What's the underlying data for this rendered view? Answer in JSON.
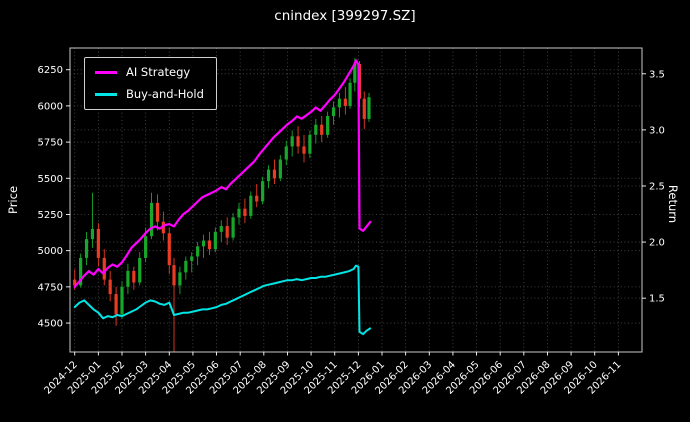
{
  "chart_data": {
    "type": "line",
    "title": "cnindex [399297.SZ]",
    "background": "#000000",
    "grid": {
      "show": true,
      "style": "dotted",
      "color": "#4f4f4f"
    },
    "x_axis": {
      "domain_months": [
        -0.2,
        24.0
      ],
      "tick_rotation": 45,
      "tick_labels": [
        "2024-12",
        "2025-01",
        "2025-02",
        "2025-03",
        "2025-04",
        "2025-05",
        "2025-06",
        "2025-07",
        "2025-08",
        "2025-09",
        "2025-10",
        "2025-11",
        "2025-12",
        "2026-01",
        "2026-02",
        "2026-03",
        "2026-04",
        "2026-05",
        "2026-06",
        "2026-07",
        "2026-08",
        "2026-09",
        "2026-10",
        "2026-11"
      ]
    },
    "left_axis": {
      "label": "Price",
      "ticks": [
        4500,
        4750,
        5000,
        5250,
        5500,
        5750,
        6000,
        6250
      ],
      "range": [
        4300,
        6400
      ]
    },
    "right_axis": {
      "label": "Return",
      "ticks": [
        "1.5",
        "2.0",
        "2.5",
        "3.0",
        "3.5"
      ],
      "range": [
        1.02,
        3.73
      ]
    },
    "legend": {
      "position": "upper-left",
      "entries": [
        {
          "label": "AI Strategy",
          "color": "#ff00ff"
        },
        {
          "label": "Buy-and-Hold",
          "color": "#00e5e5"
        }
      ]
    },
    "series": [
      {
        "name": "AI Strategy",
        "axis": "right",
        "color": "#ff00ff",
        "width": 2.2,
        "points": [
          [
            0.0,
            1.6
          ],
          [
            0.2,
            1.65
          ],
          [
            0.4,
            1.7
          ],
          [
            0.6,
            1.74
          ],
          [
            0.8,
            1.71
          ],
          [
            1.0,
            1.76
          ],
          [
            1.2,
            1.72
          ],
          [
            1.4,
            1.77
          ],
          [
            1.6,
            1.8
          ],
          [
            1.8,
            1.78
          ],
          [
            2.0,
            1.82
          ],
          [
            2.2,
            1.88
          ],
          [
            2.4,
            1.95
          ],
          [
            2.6,
            1.99
          ],
          [
            2.8,
            2.03
          ],
          [
            3.0,
            2.08
          ],
          [
            3.2,
            2.12
          ],
          [
            3.4,
            2.14
          ],
          [
            3.6,
            2.12
          ],
          [
            3.8,
            2.15
          ],
          [
            4.0,
            2.16
          ],
          [
            4.2,
            2.14
          ],
          [
            4.4,
            2.2
          ],
          [
            4.6,
            2.25
          ],
          [
            4.8,
            2.28
          ],
          [
            5.0,
            2.32
          ],
          [
            5.2,
            2.36
          ],
          [
            5.4,
            2.4
          ],
          [
            5.6,
            2.42
          ],
          [
            5.8,
            2.44
          ],
          [
            6.0,
            2.46
          ],
          [
            6.2,
            2.49
          ],
          [
            6.4,
            2.47
          ],
          [
            6.6,
            2.52
          ],
          [
            6.8,
            2.56
          ],
          [
            7.0,
            2.6
          ],
          [
            7.2,
            2.64
          ],
          [
            7.4,
            2.68
          ],
          [
            7.6,
            2.72
          ],
          [
            7.8,
            2.78
          ],
          [
            8.0,
            2.83
          ],
          [
            8.2,
            2.88
          ],
          [
            8.4,
            2.93
          ],
          [
            8.6,
            2.97
          ],
          [
            8.8,
            3.01
          ],
          [
            9.0,
            3.05
          ],
          [
            9.2,
            3.08
          ],
          [
            9.4,
            3.12
          ],
          [
            9.6,
            3.1
          ],
          [
            9.8,
            3.13
          ],
          [
            10.0,
            3.16
          ],
          [
            10.2,
            3.2
          ],
          [
            10.4,
            3.17
          ],
          [
            10.6,
            3.22
          ],
          [
            10.8,
            3.27
          ],
          [
            11.0,
            3.31
          ],
          [
            11.2,
            3.37
          ],
          [
            11.4,
            3.43
          ],
          [
            11.6,
            3.5
          ],
          [
            11.8,
            3.57
          ],
          [
            11.9,
            3.62
          ],
          [
            12.0,
            3.58
          ],
          [
            12.05,
            2.12
          ],
          [
            12.2,
            2.1
          ],
          [
            12.35,
            2.14
          ],
          [
            12.5,
            2.18
          ]
        ]
      },
      {
        "name": "Buy-and-Hold",
        "axis": "right",
        "color": "#00e5e5",
        "width": 2.0,
        "points": [
          [
            0.0,
            1.42
          ],
          [
            0.2,
            1.46
          ],
          [
            0.4,
            1.48
          ],
          [
            0.6,
            1.44
          ],
          [
            0.8,
            1.4
          ],
          [
            1.0,
            1.37
          ],
          [
            1.2,
            1.32
          ],
          [
            1.4,
            1.34
          ],
          [
            1.6,
            1.33
          ],
          [
            1.8,
            1.35
          ],
          [
            2.0,
            1.34
          ],
          [
            2.2,
            1.36
          ],
          [
            2.4,
            1.38
          ],
          [
            2.6,
            1.4
          ],
          [
            2.8,
            1.43
          ],
          [
            3.0,
            1.46
          ],
          [
            3.2,
            1.48
          ],
          [
            3.4,
            1.47
          ],
          [
            3.6,
            1.45
          ],
          [
            3.8,
            1.44
          ],
          [
            4.0,
            1.46
          ],
          [
            4.2,
            1.35
          ],
          [
            4.4,
            1.36
          ],
          [
            4.6,
            1.37
          ],
          [
            4.8,
            1.37
          ],
          [
            5.0,
            1.38
          ],
          [
            5.2,
            1.39
          ],
          [
            5.4,
            1.4
          ],
          [
            5.6,
            1.4
          ],
          [
            5.8,
            1.41
          ],
          [
            6.0,
            1.42
          ],
          [
            6.2,
            1.44
          ],
          [
            6.4,
            1.45
          ],
          [
            6.6,
            1.47
          ],
          [
            6.8,
            1.49
          ],
          [
            7.0,
            1.51
          ],
          [
            7.2,
            1.53
          ],
          [
            7.4,
            1.55
          ],
          [
            7.6,
            1.57
          ],
          [
            7.8,
            1.59
          ],
          [
            8.0,
            1.61
          ],
          [
            8.2,
            1.62
          ],
          [
            8.4,
            1.63
          ],
          [
            8.6,
            1.64
          ],
          [
            8.8,
            1.65
          ],
          [
            9.0,
            1.66
          ],
          [
            9.2,
            1.66
          ],
          [
            9.4,
            1.67
          ],
          [
            9.6,
            1.66
          ],
          [
            9.8,
            1.67
          ],
          [
            10.0,
            1.68
          ],
          [
            10.2,
            1.68
          ],
          [
            10.4,
            1.69
          ],
          [
            10.6,
            1.69
          ],
          [
            10.8,
            1.7
          ],
          [
            11.0,
            1.71
          ],
          [
            11.2,
            1.72
          ],
          [
            11.4,
            1.73
          ],
          [
            11.6,
            1.74
          ],
          [
            11.8,
            1.76
          ],
          [
            11.9,
            1.79
          ],
          [
            12.0,
            1.78
          ],
          [
            12.05,
            1.2
          ],
          [
            12.2,
            1.18
          ],
          [
            12.35,
            1.21
          ],
          [
            12.5,
            1.23
          ]
        ]
      }
    ],
    "candlestick": {
      "name": "cnindex price OHLC",
      "axis": "left",
      "up_color": "#17a82b",
      "down_color": "#ea3b23",
      "columns": [
        "month",
        "open",
        "high",
        "low",
        "close"
      ],
      "data": [
        [
          0.0,
          4800,
          4870,
          4730,
          4760
        ],
        [
          0.25,
          4760,
          4980,
          4745,
          4950
        ],
        [
          0.5,
          4950,
          5130,
          4900,
          5080
        ],
        [
          0.75,
          5080,
          5400,
          5020,
          5150
        ],
        [
          1.0,
          5150,
          5190,
          4890,
          4950
        ],
        [
          1.25,
          4950,
          5010,
          4760,
          4800
        ],
        [
          1.5,
          4800,
          4860,
          4650,
          4700
        ],
        [
          1.75,
          4700,
          4750,
          4480,
          4560
        ],
        [
          2.0,
          4560,
          4790,
          4530,
          4750
        ],
        [
          2.25,
          4750,
          4910,
          4700,
          4860
        ],
        [
          2.5,
          4860,
          4890,
          4730,
          4780
        ],
        [
          2.75,
          4780,
          4990,
          4760,
          4950
        ],
        [
          3.0,
          4950,
          5160,
          4920,
          5100
        ],
        [
          3.25,
          5100,
          5400,
          5080,
          5330
        ],
        [
          3.5,
          5330,
          5390,
          5140,
          5200
        ],
        [
          3.75,
          5200,
          5270,
          5070,
          5120
        ],
        [
          4.0,
          5120,
          5160,
          4840,
          4900
        ],
        [
          4.2,
          4900,
          4950,
          4300,
          4760
        ],
        [
          4.45,
          4760,
          4890,
          4700,
          4850
        ],
        [
          4.7,
          4850,
          4960,
          4800,
          4930
        ],
        [
          4.95,
          4930,
          4990,
          4850,
          4960
        ],
        [
          5.2,
          4960,
          5060,
          4900,
          5030
        ],
        [
          5.45,
          5030,
          5110,
          4950,
          5070
        ],
        [
          5.7,
          5070,
          5130,
          4970,
          5010
        ],
        [
          5.95,
          5010,
          5160,
          4990,
          5130
        ],
        [
          6.2,
          5130,
          5210,
          5060,
          5170
        ],
        [
          6.45,
          5170,
          5230,
          5040,
          5090
        ],
        [
          6.7,
          5090,
          5260,
          5070,
          5230
        ],
        [
          6.95,
          5230,
          5330,
          5180,
          5290
        ],
        [
          7.2,
          5290,
          5360,
          5190,
          5240
        ],
        [
          7.45,
          5240,
          5410,
          5220,
          5380
        ],
        [
          7.7,
          5380,
          5460,
          5300,
          5340
        ],
        [
          7.95,
          5340,
          5510,
          5320,
          5480
        ],
        [
          8.2,
          5480,
          5590,
          5430,
          5560
        ],
        [
          8.45,
          5560,
          5630,
          5460,
          5500
        ],
        [
          8.7,
          5500,
          5660,
          5480,
          5630
        ],
        [
          8.95,
          5630,
          5760,
          5590,
          5720
        ],
        [
          9.2,
          5720,
          5830,
          5650,
          5790
        ],
        [
          9.45,
          5790,
          5860,
          5670,
          5720
        ],
        [
          9.7,
          5720,
          5800,
          5610,
          5670
        ],
        [
          9.95,
          5670,
          5830,
          5640,
          5800
        ],
        [
          10.2,
          5800,
          5910,
          5740,
          5870
        ],
        [
          10.45,
          5870,
          5930,
          5750,
          5800
        ],
        [
          10.7,
          5800,
          5960,
          5780,
          5930
        ],
        [
          10.95,
          5930,
          6030,
          5870,
          5990
        ],
        [
          11.2,
          5990,
          6090,
          5920,
          6050
        ],
        [
          11.45,
          6050,
          6130,
          5940,
          6000
        ],
        [
          11.65,
          6000,
          6190,
          5980,
          6160
        ],
        [
          11.85,
          6160,
          6330,
          6100,
          6290
        ],
        [
          12.05,
          6290,
          6310,
          5990,
          6050
        ],
        [
          12.25,
          6050,
          6100,
          5840,
          5910
        ],
        [
          12.45,
          5910,
          6090,
          5890,
          6060
        ]
      ]
    }
  }
}
